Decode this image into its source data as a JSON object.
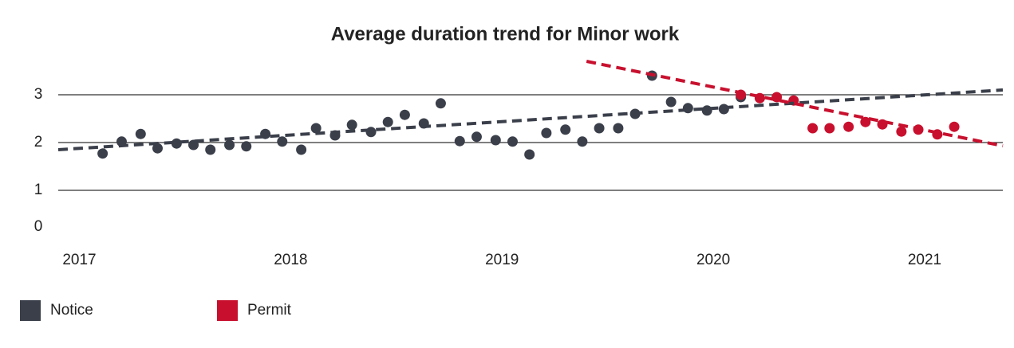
{
  "chart_data": {
    "type": "scatter",
    "title": "Average duration trend for Minor work",
    "xlim": [
      2016.9,
      2021.37
    ],
    "xticks": [
      2017,
      2018,
      2019,
      2020,
      2021
    ],
    "ylim": [
      0,
      3.7
    ],
    "yticks": [
      0,
      1,
      2,
      3
    ],
    "grid": true,
    "legend": "bottom-left",
    "series": [
      {
        "name": "Notice",
        "color": "#3a3f4a",
        "x": [
          2017.11,
          2017.2,
          2017.29,
          2017.37,
          2017.46,
          2017.54,
          2017.62,
          2017.71,
          2017.79,
          2017.88,
          2017.96,
          2018.05,
          2018.12,
          2018.21,
          2018.29,
          2018.38,
          2018.46,
          2018.54,
          2018.63,
          2018.71,
          2018.8,
          2018.88,
          2018.97,
          2019.05,
          2019.13,
          2019.21,
          2019.3,
          2019.38,
          2019.46,
          2019.55,
          2019.63,
          2019.71,
          2019.8,
          2019.88,
          2019.97,
          2020.05,
          2020.13
        ],
        "values": [
          1.77,
          2.02,
          2.18,
          1.88,
          1.98,
          1.95,
          1.85,
          1.95,
          1.92,
          2.18,
          2.02,
          1.85,
          2.3,
          2.15,
          2.37,
          2.22,
          2.43,
          2.58,
          2.4,
          2.82,
          2.03,
          2.12,
          2.05,
          2.02,
          1.75,
          2.2,
          2.27,
          2.02,
          2.3,
          2.3,
          2.6,
          3.4,
          2.85,
          2.72,
          2.67,
          2.7,
          2.95
        ],
        "trend": {
          "x": [
            2016.9,
            2021.37
          ],
          "values": [
            1.85,
            3.1
          ]
        }
      },
      {
        "name": "Permit",
        "color": "#c8102e",
        "x": [
          2020.13,
          2020.22,
          2020.3,
          2020.38,
          2020.47,
          2020.55,
          2020.64,
          2020.72,
          2020.8,
          2020.89,
          2020.97,
          2021.06,
          2021.14
        ],
        "values": [
          3.0,
          2.93,
          2.95,
          2.88,
          2.3,
          2.3,
          2.33,
          2.43,
          2.38,
          2.23,
          2.27,
          2.17,
          2.33
        ],
        "trend": {
          "x": [
            2019.4,
            2021.37
          ],
          "values": [
            3.7,
            1.93
          ]
        }
      }
    ]
  }
}
